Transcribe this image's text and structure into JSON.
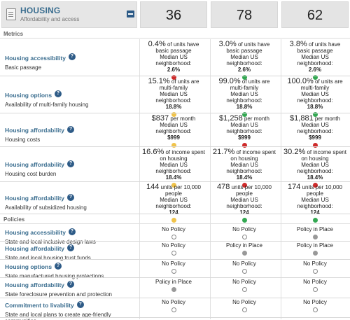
{
  "category": {
    "title": "HOUSING",
    "subtitle": "Affordability and access",
    "icon": "document-icon",
    "collapse_icon": "collapse-icon"
  },
  "scores": [
    "36",
    "78",
    "62"
  ],
  "sections": {
    "metrics": "Metrics",
    "policies": "Policies"
  },
  "metrics": [
    {
      "title": "Housing accessibility",
      "sub": "Basic passage",
      "cells": [
        {
          "big": "0.4%",
          "rest": " of units have basic passage",
          "median_label": "Median US neighborhood:",
          "median": "2.6%",
          "dot": "red"
        },
        {
          "big": "3.0%",
          "rest": " of units have basic passage",
          "median_label": "Median US neighborhood:",
          "median": "2.6%",
          "dot": "green"
        },
        {
          "big": "3.8%",
          "rest": " of units have basic passage",
          "median_label": "Median US neighborhood:",
          "median": "2.6%",
          "dot": "green"
        }
      ]
    },
    {
      "title": "Housing options",
      "sub": "Availability of multi-family housing",
      "cells": [
        {
          "big": "15.1%",
          "rest": " of units are multi-family",
          "median_label": "Median US neighborhood:",
          "median": "18.8%",
          "dot": "yellow"
        },
        {
          "big": "99.0%",
          "rest": " of units are multi-family",
          "median_label": "Median US neighborhood:",
          "median": "18.8%",
          "dot": "green"
        },
        {
          "big": "100.0%",
          "rest": " of units are multi-family",
          "median_label": "Median US neighborhood:",
          "median": "18.8%",
          "dot": "green"
        }
      ]
    },
    {
      "title": "Housing affordability",
      "sub": "Housing costs",
      "cells": [
        {
          "big": "$837",
          "rest": " per month",
          "median_label": "Median US neighborhood:",
          "median": "$999",
          "dot": "yellow"
        },
        {
          "big": "$1,258",
          "rest": " per month",
          "median_label": "Median US neighborhood:",
          "median": "$999",
          "dot": "red"
        },
        {
          "big": "$1,881",
          "rest": " per month",
          "median_label": "Median US neighborhood:",
          "median": "$999",
          "dot": "red"
        }
      ]
    },
    {
      "title": "Housing affordability",
      "sub": "Housing cost burden",
      "cells": [
        {
          "big": "16.6%",
          "rest": " of income spent on housing",
          "median_label": "Median US neighborhood:",
          "median": "18.4%",
          "dot": "yellow"
        },
        {
          "big": "21.7%",
          "rest": " of income spent on housing",
          "median_label": "Median US neighborhood:",
          "median": "18.4%",
          "dot": "red"
        },
        {
          "big": "30.2%",
          "rest": " of income spent on housing",
          "median_label": "Median US neighborhood:",
          "median": "18.4%",
          "dot": "red"
        }
      ]
    },
    {
      "title": "Housing affordability",
      "sub": "Availability of subsidized housing",
      "cells": [
        {
          "big": "144",
          "rest": " units per 10,000 people",
          "median_label": "Median US neighborhood:",
          "median": "124",
          "dot": "yellow"
        },
        {
          "big": "478",
          "rest": " units per 10,000 people",
          "median_label": "Median US neighborhood:",
          "median": "124",
          "dot": "green"
        },
        {
          "big": "174",
          "rest": " units per 10,000 people",
          "median_label": "Median US neighborhood:",
          "median": "124",
          "dot": "green"
        }
      ]
    }
  ],
  "policies": [
    {
      "title": "Housing accessibility",
      "sub": "State and local inclusive design laws",
      "cells": [
        {
          "text": "No Policy",
          "filled": false
        },
        {
          "text": "No Policy",
          "filled": false
        },
        {
          "text": "Policy in Place",
          "filled": true
        }
      ]
    },
    {
      "title": "Housing affordability",
      "sub": "State and local housing trust funds",
      "cells": [
        {
          "text": "No Policy",
          "filled": false
        },
        {
          "text": "Policy in Place",
          "filled": true
        },
        {
          "text": "Policy in Place",
          "filled": true
        }
      ]
    },
    {
      "title": "Housing options",
      "sub": "State manufactured housing protections",
      "cells": [
        {
          "text": "No Policy",
          "filled": false
        },
        {
          "text": "No Policy",
          "filled": false
        },
        {
          "text": "No Policy",
          "filled": false
        }
      ]
    },
    {
      "title": "Housing affordability",
      "sub": "State foreclosure prevention and protection",
      "cells": [
        {
          "text": "Policy in Place",
          "filled": true
        },
        {
          "text": "No Policy",
          "filled": false
        },
        {
          "text": "No Policy",
          "filled": false
        }
      ]
    },
    {
      "title": "Commitment to livability",
      "sub": "State and local plans to create age-friendly communities",
      "cells": [
        {
          "text": "No Policy",
          "filled": false
        },
        {
          "text": "No Policy",
          "filled": false
        },
        {
          "text": "No Policy",
          "filled": false
        }
      ]
    }
  ],
  "colors": {
    "red": "#cf2a2a",
    "green": "#33a852",
    "yellow": "#f0c34a",
    "link": "#3a6d8f"
  }
}
